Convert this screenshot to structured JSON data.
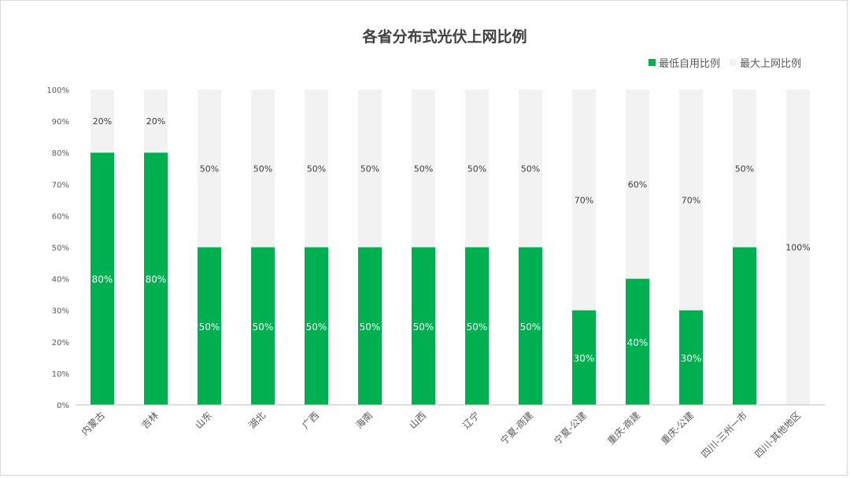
{
  "chart_data": {
    "type": "bar",
    "stacked": true,
    "title": "各省分布式光伏上网比例",
    "categories": [
      "内蒙古",
      "吉林",
      "山东",
      "湖北",
      "广西",
      "海南",
      "山西",
      "辽宁",
      "宁夏-商建",
      "宁夏-公建",
      "重庆-商建",
      "重庆-公建",
      "四川-三州一市",
      "四川-其他地区"
    ],
    "series": [
      {
        "name": "最低自用比例",
        "color": "#00b050",
        "values": [
          80,
          80,
          50,
          50,
          50,
          50,
          50,
          50,
          50,
          30,
          40,
          30,
          50,
          0
        ],
        "labels": [
          "80%",
          "80%",
          "50%",
          "50%",
          "50%",
          "50%",
          "50%",
          "50%",
          "50%",
          "30%",
          "40%",
          "30%",
          "",
          ""
        ]
      },
      {
        "name": "最大上网比例",
        "color": "#f2f2f2",
        "values": [
          20,
          20,
          50,
          50,
          50,
          50,
          50,
          50,
          50,
          70,
          60,
          70,
          50,
          100
        ],
        "labels": [
          "20%",
          "20%",
          "50%",
          "50%",
          "50%",
          "50%",
          "50%",
          "50%",
          "50%",
          "70%",
          "60%",
          "70%",
          "50%",
          "100%"
        ]
      }
    ],
    "yticks": [
      "0%",
      "10%",
      "20%",
      "30%",
      "40%",
      "50%",
      "60%",
      "70%",
      "80%",
      "90%",
      "100%"
    ],
    "ylim": [
      0,
      100
    ],
    "legend_position": "top-right",
    "grid": false
  }
}
